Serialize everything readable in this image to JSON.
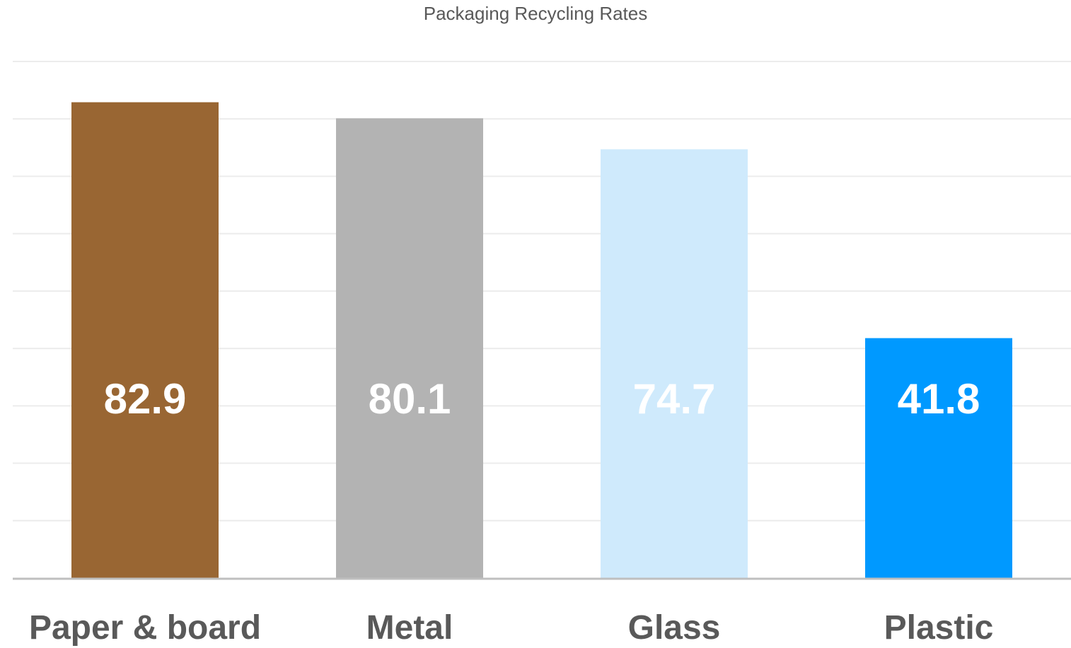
{
  "chart_data": {
    "type": "bar",
    "title": "Packaging Recycling Rates",
    "categories": [
      "Paper & board",
      "Metal",
      "Glass",
      "Plastic"
    ],
    "values": [
      82.9,
      80.1,
      74.7,
      41.8
    ],
    "data_labels": [
      "82.9",
      "80.1",
      "74.7",
      "41.8"
    ],
    "bar_colors": [
      "#996633",
      "#b3b3b3",
      "#cfeafc",
      "#0099ff"
    ],
    "label_color": "#ffffff",
    "category_label_color": "#595959",
    "gridline_color": "#ececec",
    "axis_color": "#bfbfbf",
    "xlabel": "",
    "ylabel": "",
    "ylim": [
      0,
      90
    ],
    "grid": true,
    "legend": "none"
  }
}
